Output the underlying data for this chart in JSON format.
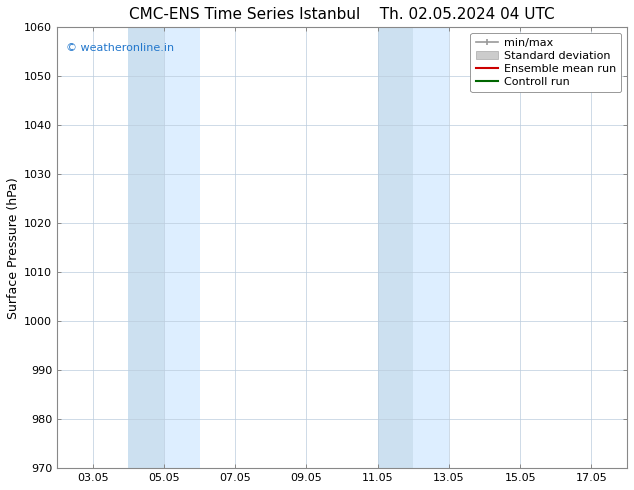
{
  "title": "CMC-ENS Time Series Istanbul",
  "title2": "Th. 02.05.2024 04 UTC",
  "ylabel": "Surface Pressure (hPa)",
  "ylim": [
    970,
    1060
  ],
  "yticks": [
    970,
    980,
    990,
    1000,
    1010,
    1020,
    1030,
    1040,
    1050,
    1060
  ],
  "xtick_labels": [
    "03.05",
    "05.05",
    "07.05",
    "09.05",
    "11.05",
    "13.05",
    "15.05",
    "17.05"
  ],
  "xtick_positions_days": [
    1,
    3,
    5,
    7,
    9,
    11,
    13,
    15
  ],
  "xlim": [
    0,
    16
  ],
  "shaded_bands": [
    {
      "start_day": 2.0,
      "end_day": 3.0,
      "color": "#cce0f0"
    },
    {
      "start_day": 3.0,
      "end_day": 4.0,
      "color": "#ddeeff"
    },
    {
      "start_day": 9.0,
      "end_day": 10.0,
      "color": "#cce0f0"
    },
    {
      "start_day": 10.0,
      "end_day": 11.0,
      "color": "#ddeeff"
    }
  ],
  "watermark_text": "© weatheronline.in",
  "watermark_color": "#2277cc",
  "background_color": "#ffffff",
  "grid_color": "#bbccdd",
  "grid_lw": 0.5,
  "spine_color": "#888888",
  "tick_fontsize": 8,
  "label_fontsize": 9,
  "title_fontsize": 11,
  "legend_fontsize": 8,
  "legend_items": [
    {
      "label": "min/max",
      "color": "#999999",
      "style": "minmax"
    },
    {
      "label": "Standard deviation",
      "color": "#cccccc",
      "style": "bar"
    },
    {
      "label": "Ensemble mean run",
      "color": "#cc0000",
      "style": "line"
    },
    {
      "label": "Controll run",
      "color": "#006600",
      "style": "line"
    }
  ]
}
